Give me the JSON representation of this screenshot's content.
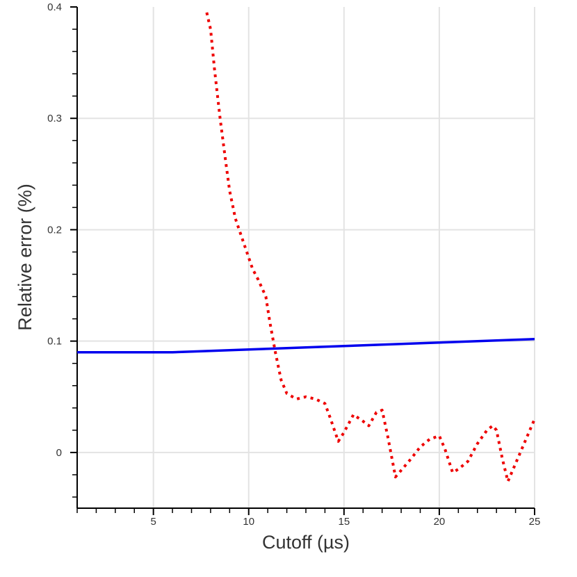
{
  "chart_data": {
    "type": "line",
    "title": "",
    "xlabel": "Cutoff (µs)",
    "ylabel": "Relative error (%)",
    "xlim": [
      1,
      25
    ],
    "ylim": [
      -0.05,
      0.4
    ],
    "x_ticks": [
      5,
      10,
      15,
      20,
      25
    ],
    "x_tick_labels": [
      "5",
      "10",
      "15",
      "20",
      "25"
    ],
    "y_ticks": [
      0,
      0.1,
      0.2,
      0.3,
      0.4
    ],
    "y_tick_labels": [
      "0",
      "0.1",
      "0.2",
      "0.3",
      "0.4"
    ],
    "grid": true,
    "series": [
      {
        "color": "#0000ee",
        "style": "solid",
        "x": [
          1,
          2,
          3,
          4,
          5,
          6,
          7,
          8,
          9,
          10,
          11,
          12,
          13,
          14,
          15,
          16,
          17,
          18,
          19,
          20,
          21,
          22,
          23,
          24,
          25
        ],
        "y": [
          0.09,
          0.09,
          0.09,
          0.09,
          0.09,
          0.09,
          0.0906,
          0.0912,
          0.0918,
          0.0925,
          0.0931,
          0.0937,
          0.0943,
          0.095,
          0.0956,
          0.0962,
          0.0968,
          0.0975,
          0.0981,
          0.0987,
          0.0993,
          0.1,
          0.1006,
          0.1012,
          0.1018
        ]
      },
      {
        "color": "#ee0000",
        "style": "dotted",
        "x": [
          7.8,
          8.0,
          8.2,
          8.5,
          8.8,
          9.0,
          9.3,
          9.6,
          9.9,
          10.2,
          10.5,
          10.9,
          11.1,
          11.4,
          11.7,
          12.0,
          12.5,
          13.0,
          13.5,
          14.0,
          14.3,
          14.7,
          15.0,
          15.5,
          16.0,
          16.3,
          16.7,
          17.0,
          17.3,
          17.7,
          18.0,
          18.5,
          19.0,
          19.5,
          20.0,
          20.3,
          20.7,
          21.0,
          21.5,
          22.0,
          22.5,
          22.8,
          23.0,
          23.3,
          23.6,
          24.0,
          24.5,
          25.0
        ],
        "y": [
          0.395,
          0.38,
          0.345,
          0.3,
          0.26,
          0.235,
          0.21,
          0.195,
          0.18,
          0.165,
          0.155,
          0.14,
          0.118,
          0.09,
          0.065,
          0.053,
          0.048,
          0.05,
          0.048,
          0.044,
          0.03,
          0.01,
          0.018,
          0.034,
          0.028,
          0.024,
          0.036,
          0.038,
          0.014,
          -0.022,
          -0.016,
          -0.006,
          0.005,
          0.012,
          0.015,
          0.003,
          -0.018,
          -0.015,
          -0.008,
          0.008,
          0.02,
          0.024,
          0.02,
          -0.005,
          -0.026,
          -0.01,
          0.01,
          0.03
        ]
      }
    ]
  }
}
